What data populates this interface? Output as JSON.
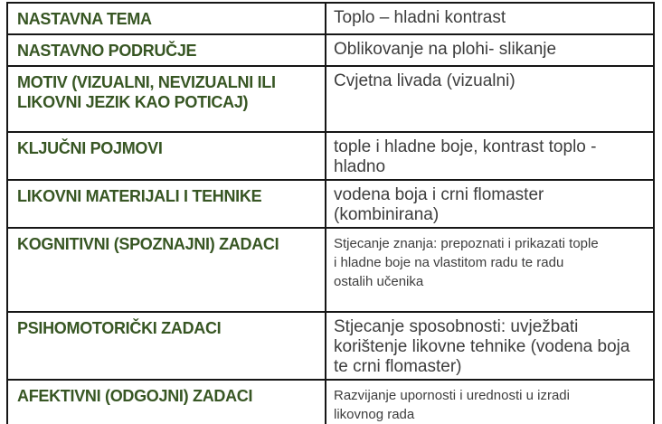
{
  "table": {
    "label_color": "#375623",
    "value_color": "#3d3d3d",
    "border_color": "#161616",
    "rows": [
      {
        "label": "NASTAVNA TEMA",
        "value": "Toplo – hladni kontrast",
        "value_size": "large"
      },
      {
        "label": "NASTAVNO PODRUČJE",
        "value": "Oblikovanje na plohi- slikanje",
        "value_size": "large"
      },
      {
        "label": "MOTIV (VIZUALNI, NEVIZUALNI ILI\nLIKOVNI JEZIK KAO POTICAJ)",
        "value": "Cvjetna livada (vizualni)",
        "value_size": "large"
      },
      {
        "label": "KLJUČNI POJMOVI",
        "value": "tople i hladne boje, kontrast toplo -\nhladno",
        "value_size": "large"
      },
      {
        "label": "LIKOVNI MATERIJALI I TEHNIKE",
        "value": "vodena boja i crni flomaster\n(kombinirana)",
        "value_size": "large"
      },
      {
        "label": "KOGNITIVNI (SPOZNAJNI) ZADACI",
        "value": "Stjecanje znanja: prepoznati i prikazati tople\ni hladne boje na vlastitom radu te radu\nostalih učenika",
        "value_size": "small"
      },
      {
        "label": "PSIHOMOTORIČKI ZADACI",
        "value": "Stjecanje sposobnosti: uvježbati\nkorištenje likovne tehnike (vodena boja\nte crni flomaster)",
        "value_size": "large"
      },
      {
        "label": "AFEKTIVNI (ODGOJNI) ZADACI",
        "value": "Razvijanje upornosti i urednosti u izradi\nlikovnog rada",
        "value_size": "small"
      }
    ]
  }
}
